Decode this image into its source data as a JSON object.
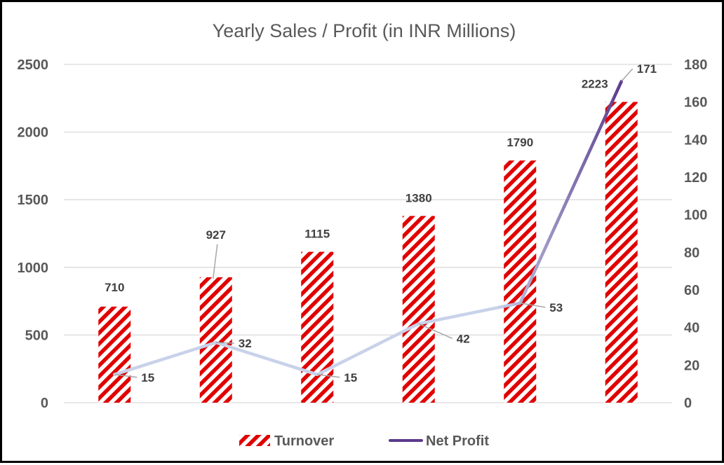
{
  "chart_data": {
    "type": "bar",
    "title": "Yearly Sales / Profit (in INR Millions)",
    "categories": [
      "",
      "",
      "",
      "",
      "",
      ""
    ],
    "series": [
      {
        "name": "Turnover",
        "type": "bar",
        "axis": "left",
        "values": [
          710,
          927,
          1115,
          1380,
          1790,
          2223
        ],
        "color": "#e00000",
        "pattern": "diagonal-stripes"
      },
      {
        "name": "Net Profit",
        "type": "line",
        "axis": "right",
        "values": [
          15,
          32,
          15,
          42,
          53,
          171
        ],
        "color_start": "#c8d2ea",
        "color_end": "#5b3a8c"
      }
    ],
    "y_left": {
      "ylim": [
        0,
        2500
      ],
      "ticks": [
        0,
        500,
        1000,
        1500,
        2000,
        2500
      ]
    },
    "y_right": {
      "ylim": [
        0,
        180
      ],
      "ticks": [
        0,
        20,
        40,
        60,
        80,
        100,
        120,
        140,
        160,
        180
      ]
    },
    "grid": true,
    "legend": "bottom"
  }
}
